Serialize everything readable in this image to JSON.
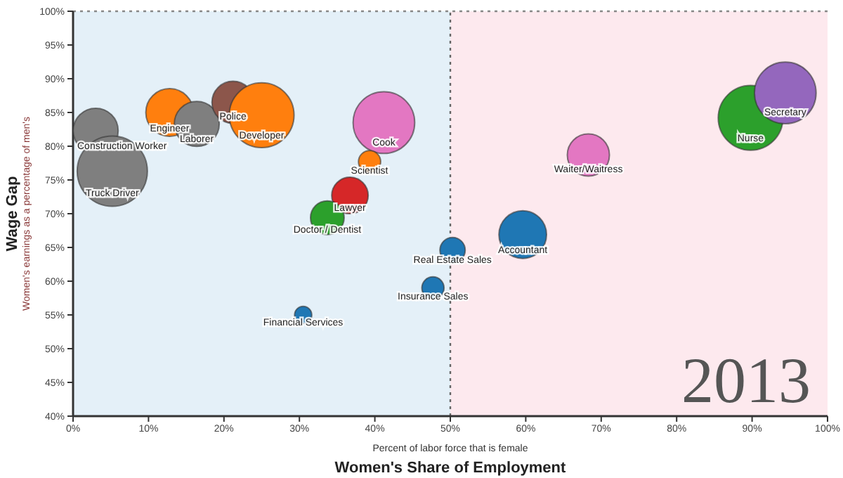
{
  "chart_data": {
    "type": "bubble",
    "xlabel": "Women's Share of Employment",
    "ylabel": "Wage Gap",
    "x": [
      3,
      5.2,
      12.8,
      16.4,
      21.2,
      25,
      41.2,
      39.3,
      36.7,
      33.7,
      30.5,
      47.7,
      50.3,
      59.6,
      68.3,
      89.8,
      94.4
    ],
    "values": [
      82.3,
      76.3,
      85,
      83.3,
      86.5,
      84.6,
      83.5,
      77.7,
      72.7,
      69.4,
      55,
      59,
      64.6,
      66.9,
      78.7,
      84.2,
      87.9
    ],
    "sizes": [
      0.41,
      1,
      0.46,
      0.41,
      0.36,
      0.85,
      0.77,
      0.1,
      0.27,
      0.23,
      0.06,
      0.1,
      0.13,
      0.46,
      0.36,
      0.85,
      0.77
    ],
    "colors": [
      "#7f7f7f",
      "#7f7f7f",
      "#ff7f0e",
      "#7f7f7f",
      "#8c564b",
      "#ff7f0e",
      "#e377c2",
      "#ff7f0e",
      "#d62728",
      "#2ca02c",
      "#1f77b4",
      "#1f77b4",
      "#1f77b4",
      "#1f77b4",
      "#e377c2",
      "#2ca02c",
      "#9467bd"
    ],
    "xlim": [
      0,
      100
    ],
    "xticks": [
      {
        "value": 0,
        "label": "0%"
      },
      {
        "value": 10,
        "label": "10%"
      },
      {
        "value": 20,
        "label": "20%"
      },
      {
        "value": 30,
        "label": "30%"
      },
      {
        "value": 40,
        "label": "40%"
      },
      {
        "value": 50,
        "label": "50%"
      },
      {
        "value": 60,
        "label": "60%"
      },
      {
        "value": 70,
        "label": "70%"
      },
      {
        "value": 80,
        "label": "80%"
      },
      {
        "value": 90,
        "label": "90%"
      },
      {
        "value": 100,
        "label": "100%"
      }
    ],
    "ylim": [
      40,
      100
    ],
    "yticks": [
      {
        "value": 40,
        "label": "40%"
      },
      {
        "value": 45,
        "label": "45%"
      },
      {
        "value": 50,
        "label": "50%"
      },
      {
        "value": 55,
        "label": "55%"
      },
      {
        "value": 60,
        "label": "60%"
      },
      {
        "value": 65,
        "label": "65%"
      },
      {
        "value": 70,
        "label": "70%"
      },
      {
        "value": 75,
        "label": "75%"
      },
      {
        "value": 80,
        "label": "80%"
      },
      {
        "value": 85,
        "label": "85%"
      },
      {
        "value": 90,
        "label": "90%"
      },
      {
        "value": 95,
        "label": "95%"
      },
      {
        "value": 100,
        "label": "100%"
      }
    ],
    "bands": [
      {
        "axis": "x",
        "from": 0,
        "to": 50,
        "color": "#e4f0f8"
      },
      {
        "axis": "x",
        "from": 50,
        "to": 100,
        "color": "#fde9ee"
      }
    ],
    "ref_lines": [
      {
        "axis": "y",
        "value": 100,
        "line_style": "dotted",
        "color": "#888888"
      },
      {
        "axis": "x",
        "value": 50,
        "line_style": "dotted",
        "color": "#666666"
      }
    ],
    "annotations": [
      "Women's earnings as a percentage of men's",
      "Percent of labor force that is female",
      "2013",
      {
        "text": "Construction Worker",
        "x": 3,
        "y": 82.3
      },
      {
        "text": "Truck Driver",
        "x": 5.2,
        "y": 76.3
      },
      {
        "text": "Engineer",
        "x": 12.8,
        "y": 85
      },
      {
        "text": "Laborer",
        "x": 16.4,
        "y": 83.3
      },
      {
        "text": "Police",
        "x": 21.2,
        "y": 86.5
      },
      {
        "text": "Developer",
        "x": 25,
        "y": 84.6
      },
      {
        "text": "Cook",
        "x": 41.2,
        "y": 83.5
      },
      {
        "text": "Scientist",
        "x": 39.3,
        "y": 77.7
      },
      {
        "text": "Lawyer",
        "x": 36.7,
        "y": 72.7
      },
      {
        "text": "Doctor / Dentist",
        "x": 33.7,
        "y": 69.4
      },
      {
        "text": "Financial Services",
        "x": 30.5,
        "y": 55
      },
      {
        "text": "Insurance Sales",
        "x": 47.7,
        "y": 59
      },
      {
        "text": "Real Estate Sales",
        "x": 50.3,
        "y": 64.6
      },
      {
        "text": "Accountant",
        "x": 59.6,
        "y": 66.9
      },
      {
        "text": "Waiter/Waitress",
        "x": 68.3,
        "y": 78.7
      },
      {
        "text": "Nurse",
        "x": 89.8,
        "y": 84.2
      },
      {
        "text": "Secretary",
        "x": 94.4,
        "y": 87.9
      }
    ]
  }
}
